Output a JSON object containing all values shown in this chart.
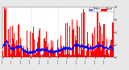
{
  "background_color": "#e8e8e8",
  "plot_bg_color": "#ffffff",
  "bar_color": "#ff0000",
  "median_color": "#0000ff",
  "grid_color": "#aaaaaa",
  "ylim": [
    0,
    8
  ],
  "num_points": 1440,
  "seed": 42,
  "yticks": [
    0,
    2,
    4,
    6,
    8
  ],
  "ytick_labels": [
    "0",
    "2",
    "4",
    "6",
    "8"
  ],
  "vlines": [
    360,
    720,
    1080
  ],
  "legend_labels": [
    "Median",
    "Actual"
  ],
  "figsize": [
    1.6,
    0.87
  ],
  "dpi": 100
}
